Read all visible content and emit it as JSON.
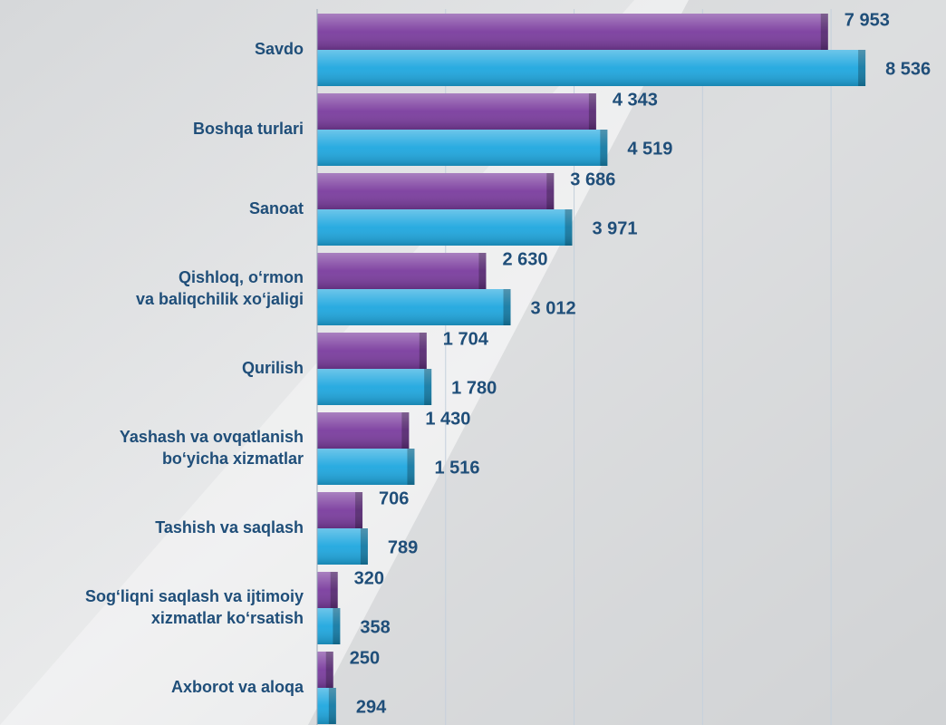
{
  "chart_data": {
    "type": "bar",
    "orientation": "horizontal",
    "categories": [
      [
        "Savdo"
      ],
      [
        "Boshqa turlari"
      ],
      [
        "Sanoat"
      ],
      [
        "Qishloq, o‘rmon",
        "va baliqchilik xo‘jaligi"
      ],
      [
        "Qurilish"
      ],
      [
        "Yashash va ovqatlanish",
        "bo‘yicha xizmatlar"
      ],
      [
        "Tashish va saqlash"
      ],
      [
        "Sog‘liqni saqlash va ijtimoiy",
        "xizmatlar ko‘rsatish"
      ],
      [
        "Axborot va aloqa"
      ]
    ],
    "series": [
      {
        "color": "#7a3c9e",
        "values": [
          7953,
          4343,
          3686,
          2630,
          1704,
          1430,
          706,
          320,
          250
        ],
        "value_labels": [
          "7 953",
          "4 343",
          "3 686",
          "2 630",
          "1 704",
          "1 430",
          "706",
          "320",
          "250"
        ]
      },
      {
        "color": "#1ea7df",
        "values": [
          8536,
          4519,
          3971,
          3012,
          1780,
          1516,
          789,
          358,
          294
        ],
        "value_labels": [
          "8 536",
          "4 519",
          "3 971",
          "3 012",
          "1 780",
          "1 516",
          "789",
          "358",
          "294"
        ]
      }
    ],
    "xlim": [
      0,
      9000
    ],
    "xticks": [
      0,
      2000,
      4000,
      6000,
      8000
    ],
    "grid": true
  }
}
